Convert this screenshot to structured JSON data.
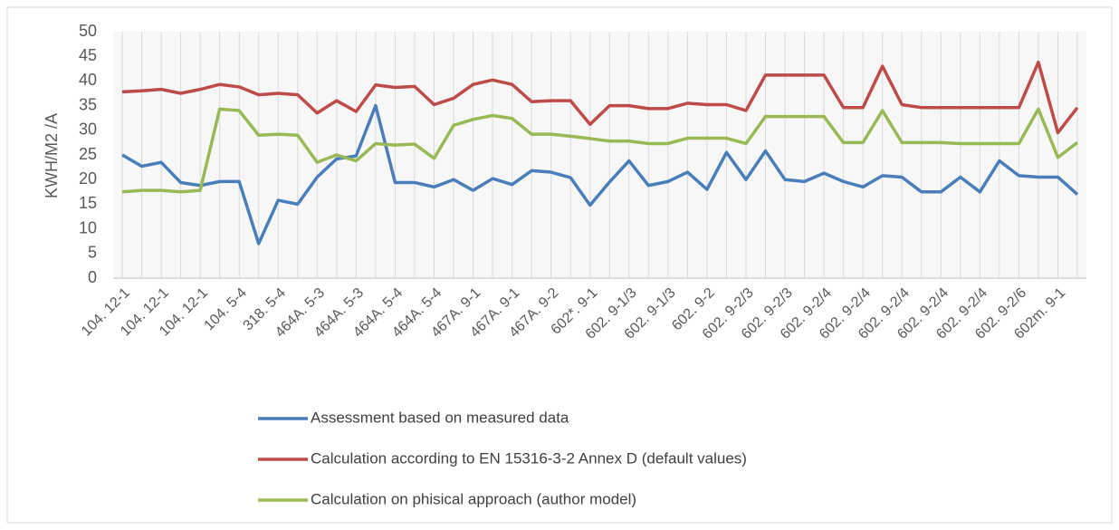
{
  "chart_data": {
    "type": "line",
    "y_label": "KWH/M2 /A",
    "categories": [
      "104. 12-1",
      null,
      "104. 12-1",
      null,
      "104. 12-1",
      null,
      "104. 5-4",
      null,
      "318. 5-4",
      null,
      "464A. 5-3",
      null,
      "464A. 5-3",
      null,
      "464A. 5-4",
      null,
      "464A. 5-4",
      null,
      "467A. 9-1",
      null,
      "467A. 9-1",
      null,
      "467A. 9-2",
      null,
      "602*. 9-1",
      null,
      "602. 9-1/3",
      null,
      "602. 9-1/3",
      null,
      "602. 9-2",
      null,
      "602. 9-2/3",
      null,
      "602. 9-2/3",
      null,
      "602. 9-2/4",
      null,
      "602. 9-2/4",
      null,
      "602. 9-2/4",
      null,
      "602. 9-2/4",
      null,
      "602. 9-2/4",
      null,
      "602. 9-2/6",
      null,
      "602m. 9-1",
      null
    ],
    "series": [
      {
        "name": "Assessment based on measured data",
        "color": "#4a7ebb",
        "values": [
          25,
          22.7,
          23.5,
          19.4,
          18.8,
          19.6,
          19.6,
          7,
          15.8,
          15,
          20.5,
          24.2,
          24.8,
          35,
          19.4,
          19.4,
          18.5,
          20,
          17.8,
          20.2,
          19,
          21.8,
          21.5,
          20.4,
          14.8,
          19.5,
          23.8,
          18.8,
          19.6,
          21.5,
          18,
          25.5,
          20,
          25.8,
          20,
          19.6,
          21.3,
          19.6,
          18.5,
          20.8,
          20.5,
          17.5,
          17.5,
          20.5,
          17.5,
          23.8,
          20.8,
          20.5,
          20.5,
          17
        ]
      },
      {
        "name": "Calculation according to EN 15316-3-2 Annex D (default values)",
        "color": "#be4b48",
        "values": [
          37.8,
          38,
          38.3,
          37.5,
          38.3,
          39.3,
          38.8,
          37.2,
          37.5,
          37.2,
          33.5,
          36,
          33.8,
          39.2,
          38.7,
          38.9,
          35.2,
          36.5,
          39.3,
          40.2,
          39.3,
          35.8,
          36,
          36,
          31.2,
          35,
          35,
          34.4,
          34.4,
          35.5,
          35.2,
          35.2,
          34,
          41.2,
          41.2,
          41.2,
          41.2,
          34.6,
          34.6,
          43,
          35.2,
          34.6,
          34.6,
          34.6,
          34.6,
          34.6,
          34.6,
          43.8,
          29.5,
          34.6
        ]
      },
      {
        "name": "Calculation on phisical approach (author model)",
        "color": "#98b954",
        "values": [
          17.5,
          17.8,
          17.8,
          17.5,
          17.8,
          34.3,
          34,
          29,
          29.2,
          29,
          23.5,
          25,
          23.8,
          27.3,
          27,
          27.2,
          24.3,
          31,
          32.2,
          33,
          32.4,
          29.2,
          29.2,
          28.8,
          28.3,
          27.8,
          27.8,
          27.3,
          27.3,
          28.4,
          28.4,
          28.4,
          27.3,
          32.8,
          32.8,
          32.8,
          32.8,
          27.5,
          27.5,
          34,
          27.5,
          27.5,
          27.5,
          27.3,
          27.3,
          27.3,
          27.3,
          34.3,
          24.5,
          27.5
        ]
      }
    ],
    "ylim": [
      0,
      50
    ],
    "yticks": [
      0,
      5,
      10,
      15,
      20,
      25,
      30,
      35,
      40,
      45,
      50
    ],
    "grid": true
  }
}
